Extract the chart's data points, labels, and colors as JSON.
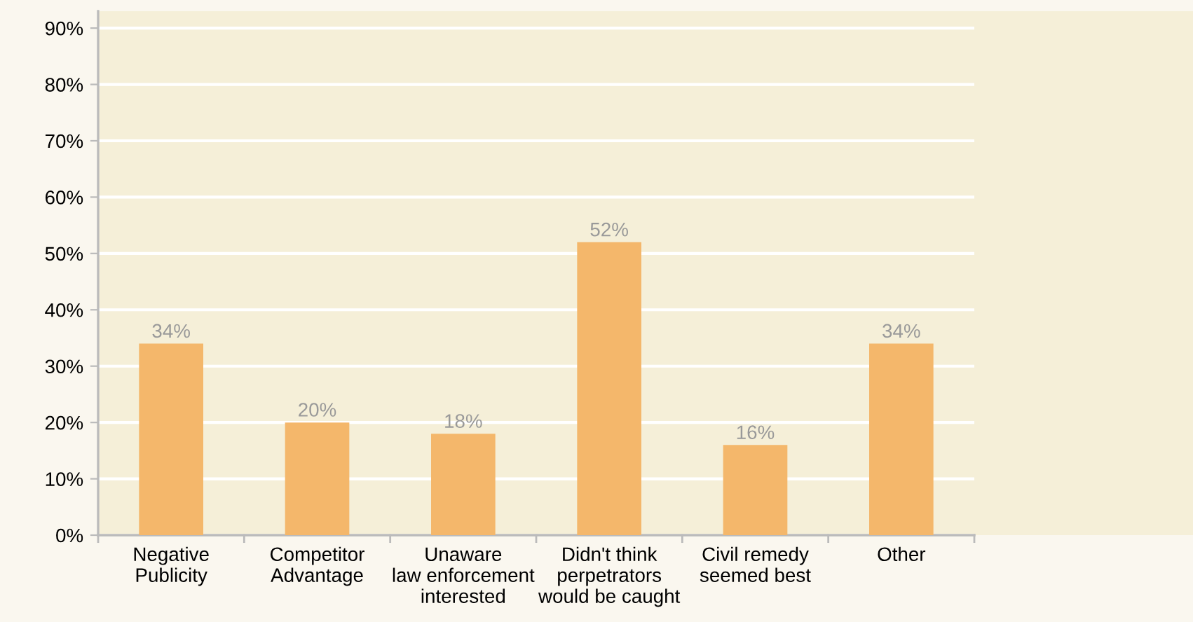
{
  "chart_data": {
    "type": "bar",
    "categories": [
      "Negative\nPublicity",
      "Competitor\nAdvantage",
      "Unaware\nlaw enforcement\ninterested",
      "Didn't think\nperpetrators\nwould be caught",
      "Civil remedy\nseemed best",
      "Other"
    ],
    "values": [
      34,
      20,
      18,
      52,
      16,
      34
    ],
    "value_labels": [
      "34%",
      "20%",
      "18%",
      "52%",
      "16%",
      "34%"
    ],
    "color": "#f4b76b",
    "ylim": [
      0,
      93
    ],
    "yticks": [
      {
        "value": 0,
        "label": "0%"
      },
      {
        "value": 10,
        "label": "10%"
      },
      {
        "value": 20,
        "label": "20%"
      },
      {
        "value": 30,
        "label": "30%"
      },
      {
        "value": 40,
        "label": "40%"
      },
      {
        "value": 50,
        "label": "50%"
      },
      {
        "value": 60,
        "label": "60%"
      },
      {
        "value": 70,
        "label": "70%"
      },
      {
        "value": 80,
        "label": "80%"
      },
      {
        "value": 90,
        "label": "90%"
      }
    ],
    "grid": "y",
    "legend": false
  }
}
